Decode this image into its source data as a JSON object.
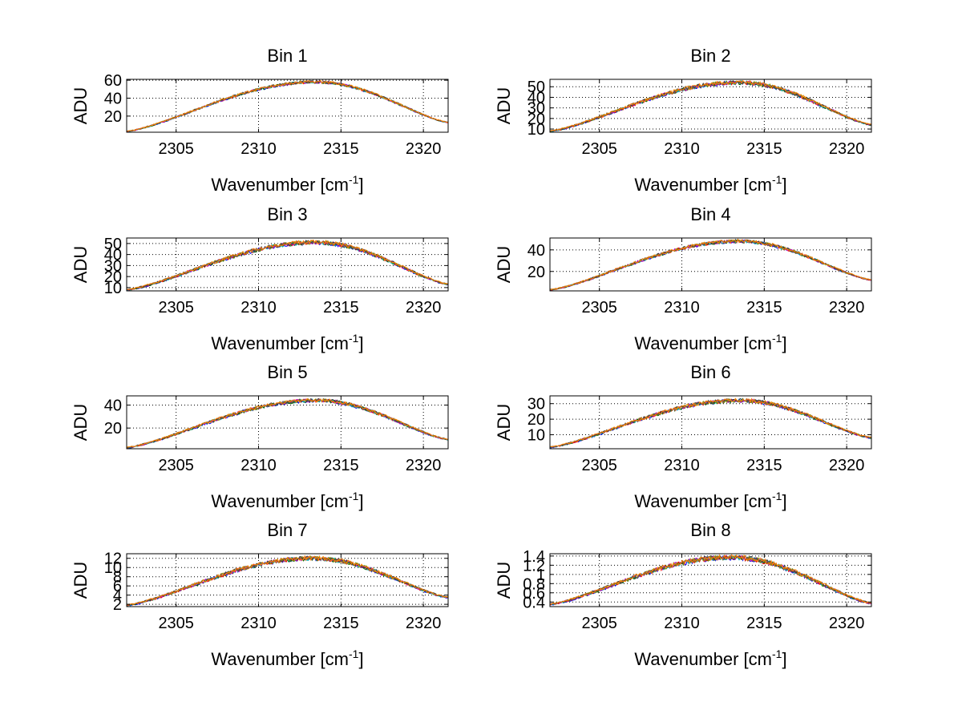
{
  "chart_data": [
    {
      "type": "line",
      "title": "Bin 1",
      "xlabel": "Wavenumber [cm",
      "xlabel_sup": "-1",
      "xlabel_end": "]",
      "ylabel": "ADU",
      "xlim": [
        2302,
        2321.5
      ],
      "ylim": [
        2,
        61
      ],
      "xticks": [
        2305,
        2310,
        2315,
        2320
      ],
      "yticks": [
        20,
        40,
        60
      ],
      "grid": true,
      "curve": {
        "center": 2313.5,
        "peak": 58,
        "edge_left": 3,
        "edge_right": 13,
        "noise": 1.5
      },
      "series_colors": [
        "#0000ff",
        "#006400",
        "#ff0000",
        "#00bfbf",
        "#bf00bf",
        "#8b8b00",
        "#404040",
        "#ff8000"
      ]
    },
    {
      "type": "line",
      "title": "Bin 2",
      "xlabel": "Wavenumber [cm",
      "xlabel_sup": "-1",
      "xlabel_end": "]",
      "ylabel": "ADU",
      "xlim": [
        2302,
        2321.5
      ],
      "ylim": [
        7,
        57
      ],
      "xticks": [
        2305,
        2310,
        2315,
        2320
      ],
      "yticks": [
        10,
        20,
        30,
        40,
        50
      ],
      "grid": true,
      "curve": {
        "center": 2313.5,
        "peak": 54,
        "edge_left": 8,
        "edge_right": 14,
        "noise": 1.8
      },
      "series_colors": [
        "#0000ff",
        "#006400",
        "#ff0000",
        "#00bfbf",
        "#bf00bf",
        "#8b8b00",
        "#404040",
        "#ff8000"
      ]
    },
    {
      "type": "line",
      "title": "Bin 3",
      "xlabel": "Wavenumber [cm",
      "xlabel_sup": "-1",
      "xlabel_end": "]",
      "ylabel": "ADU",
      "xlim": [
        2302,
        2321.5
      ],
      "ylim": [
        7,
        55
      ],
      "xticks": [
        2305,
        2310,
        2315,
        2320
      ],
      "yticks": [
        10,
        20,
        30,
        40,
        50
      ],
      "grid": true,
      "curve": {
        "center": 2313.5,
        "peak": 51,
        "edge_left": 8,
        "edge_right": 13,
        "noise": 1.8
      },
      "series_colors": [
        "#0000ff",
        "#006400",
        "#ff0000",
        "#00bfbf",
        "#bf00bf",
        "#8b8b00",
        "#404040",
        "#ff8000"
      ]
    },
    {
      "type": "line",
      "title": "Bin 4",
      "xlabel": "Wavenumber [cm",
      "xlabel_sup": "-1",
      "xlabel_end": "]",
      "ylabel": "ADU",
      "xlim": [
        2302,
        2321.5
      ],
      "ylim": [
        2,
        51
      ],
      "xticks": [
        2305,
        2310,
        2315,
        2320
      ],
      "yticks": [
        20,
        40
      ],
      "grid": true,
      "curve": {
        "center": 2313.5,
        "peak": 48,
        "edge_left": 3,
        "edge_right": 12,
        "noise": 1.5
      },
      "series_colors": [
        "#0000ff",
        "#006400",
        "#ff0000",
        "#00bfbf",
        "#bf00bf",
        "#8b8b00",
        "#404040",
        "#ff8000"
      ]
    },
    {
      "type": "line",
      "title": "Bin 5",
      "xlabel": "Wavenumber [cm",
      "xlabel_sup": "-1",
      "xlabel_end": "]",
      "ylabel": "ADU",
      "xlim": [
        2302,
        2321.5
      ],
      "ylim": [
        2,
        48
      ],
      "xticks": [
        2305,
        2310,
        2315,
        2320
      ],
      "yticks": [
        20,
        40
      ],
      "grid": true,
      "curve": {
        "center": 2313.5,
        "peak": 44,
        "edge_left": 3,
        "edge_right": 10,
        "noise": 1.5
      },
      "series_colors": [
        "#0000ff",
        "#006400",
        "#ff0000",
        "#00bfbf",
        "#bf00bf",
        "#8b8b00",
        "#404040",
        "#ff8000"
      ]
    },
    {
      "type": "line",
      "title": "Bin 6",
      "xlabel": "Wavenumber [cm",
      "xlabel_sup": "-1",
      "xlabel_end": "]",
      "ylabel": "ADU",
      "xlim": [
        2302,
        2321.5
      ],
      "ylim": [
        1,
        35
      ],
      "xticks": [
        2305,
        2310,
        2315,
        2320
      ],
      "yticks": [
        10,
        20,
        30
      ],
      "grid": true,
      "curve": {
        "center": 2313.5,
        "peak": 32,
        "edge_left": 2,
        "edge_right": 8,
        "noise": 1.2
      },
      "series_colors": [
        "#0000ff",
        "#006400",
        "#ff0000",
        "#00bfbf",
        "#bf00bf",
        "#8b8b00",
        "#404040",
        "#ff8000"
      ]
    },
    {
      "type": "line",
      "title": "Bin 7",
      "xlabel": "Wavenumber [cm",
      "xlabel_sup": "-1",
      "xlabel_end": "]",
      "ylabel": "ADU",
      "xlim": [
        2302,
        2321.5
      ],
      "ylim": [
        1.5,
        13
      ],
      "xticks": [
        2305,
        2310,
        2315,
        2320
      ],
      "yticks": [
        2,
        4,
        6,
        8,
        10,
        12
      ],
      "grid": true,
      "curve": {
        "center": 2313.3,
        "peak": 12,
        "edge_left": 1.8,
        "edge_right": 3.5,
        "noise": 0.45
      },
      "series_colors": [
        "#0000ff",
        "#006400",
        "#ff0000",
        "#00bfbf",
        "#bf00bf",
        "#8b8b00",
        "#404040",
        "#ff8000"
      ]
    },
    {
      "type": "line",
      "title": "Bin 8",
      "xlabel": "Wavenumber [cm",
      "xlabel_sup": "-1",
      "xlabel_end": "]",
      "ylabel": "ADU",
      "xlim": [
        2302,
        2321.5
      ],
      "ylim": [
        0.3,
        1.45
      ],
      "xticks": [
        2305,
        2310,
        2315,
        2320
      ],
      "yticks": [
        0.4,
        0.6,
        0.8,
        1,
        1.2,
        1.4
      ],
      "grid": true,
      "curve": {
        "center": 2313.0,
        "peak": 1.37,
        "edge_left": 0.35,
        "edge_right": 0.37,
        "noise": 0.05
      },
      "series_colors": [
        "#0000ff",
        "#006400",
        "#ff0000",
        "#00bfbf",
        "#bf00bf",
        "#8b8b00",
        "#404040",
        "#ff8000"
      ]
    }
  ]
}
